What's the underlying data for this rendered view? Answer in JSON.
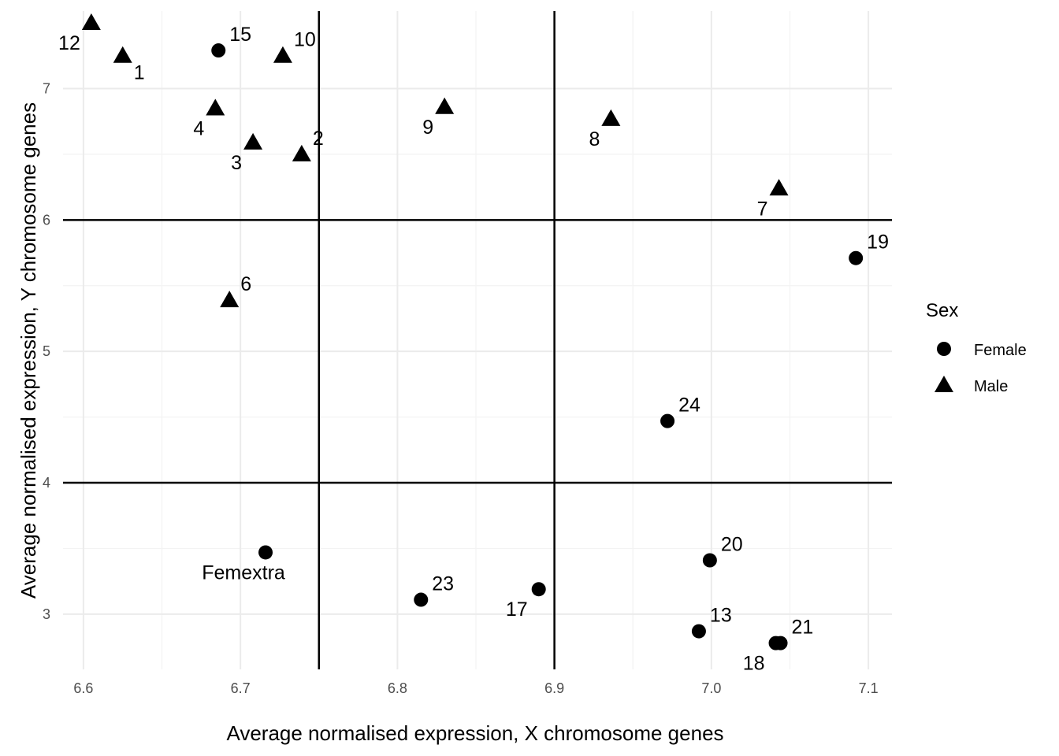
{
  "chart_data": {
    "type": "scatter",
    "xlabel": "Average normalised expression, X chromosome genes",
    "ylabel": "Average normalised expression, Y chromosome genes",
    "xlim": [
      6.587,
      7.115
    ],
    "ylim": [
      2.58,
      7.59
    ],
    "x_ticks": [
      6.6,
      6.7,
      6.8,
      6.9,
      7.0,
      7.1
    ],
    "x_tick_labels": [
      "6.6",
      "6.7",
      "6.8",
      "6.9",
      "7.0",
      "7.1"
    ],
    "y_ticks": [
      3,
      4,
      5,
      6,
      7
    ],
    "y_tick_labels": [
      "3",
      "4",
      "5",
      "6",
      "7"
    ],
    "grid": true,
    "reference_lines": {
      "vertical": [
        6.75,
        6.9
      ],
      "horizontal": [
        4,
        6
      ]
    },
    "legend": {
      "title": "Sex",
      "position": "right",
      "entries": [
        {
          "label": "Female",
          "shape": "circle"
        },
        {
          "label": "Male",
          "shape": "triangle"
        }
      ]
    },
    "points": [
      {
        "label": "12",
        "x": 6.605,
        "y": 7.5,
        "sex": "Male",
        "label_side": "bottom-left"
      },
      {
        "label": "1",
        "x": 6.625,
        "y": 7.25,
        "sex": "Male",
        "label_side": "bottom-right"
      },
      {
        "label": "15",
        "x": 6.686,
        "y": 7.29,
        "sex": "Female",
        "label_side": "top-right"
      },
      {
        "label": "10",
        "x": 6.727,
        "y": 7.25,
        "sex": "Male",
        "label_side": "top-right"
      },
      {
        "label": "4",
        "x": 6.684,
        "y": 6.85,
        "sex": "Male",
        "label_side": "bottom-left"
      },
      {
        "label": "3",
        "x": 6.708,
        "y": 6.59,
        "sex": "Male",
        "label_side": "bottom-left"
      },
      {
        "label": "2",
        "x": 6.739,
        "y": 6.5,
        "sex": "Male",
        "label_side": "top-right"
      },
      {
        "label": "9",
        "x": 6.83,
        "y": 6.86,
        "sex": "Male",
        "label_side": "bottom-left"
      },
      {
        "label": "8",
        "x": 6.936,
        "y": 6.77,
        "sex": "Male",
        "label_side": "bottom-left"
      },
      {
        "label": "7",
        "x": 7.043,
        "y": 6.24,
        "sex": "Male",
        "label_side": "bottom-left"
      },
      {
        "label": "19",
        "x": 7.092,
        "y": 5.71,
        "sex": "Female",
        "label_side": "top-right"
      },
      {
        "label": "6",
        "x": 6.693,
        "y": 5.39,
        "sex": "Male",
        "label_side": "top-right"
      },
      {
        "label": "24",
        "x": 6.972,
        "y": 4.47,
        "sex": "Female",
        "label_side": "top-right"
      },
      {
        "label": "Femextra",
        "x": 6.716,
        "y": 3.47,
        "sex": "Female",
        "label_side": "bottom-left"
      },
      {
        "label": "20",
        "x": 6.999,
        "y": 3.41,
        "sex": "Female",
        "label_side": "top-right"
      },
      {
        "label": "23",
        "x": 6.815,
        "y": 3.11,
        "sex": "Female",
        "label_side": "top-right"
      },
      {
        "label": "17",
        "x": 6.89,
        "y": 3.19,
        "sex": "Female",
        "label_side": "bottom-left"
      },
      {
        "label": "13",
        "x": 6.992,
        "y": 2.87,
        "sex": "Female",
        "label_side": "top-right"
      },
      {
        "label": "21",
        "x": 7.044,
        "y": 2.78,
        "sex": "Female",
        "label_side": "top-right"
      },
      {
        "label": "18",
        "x": 7.041,
        "y": 2.78,
        "sex": "Female",
        "label_side": "bottom-left"
      }
    ]
  }
}
